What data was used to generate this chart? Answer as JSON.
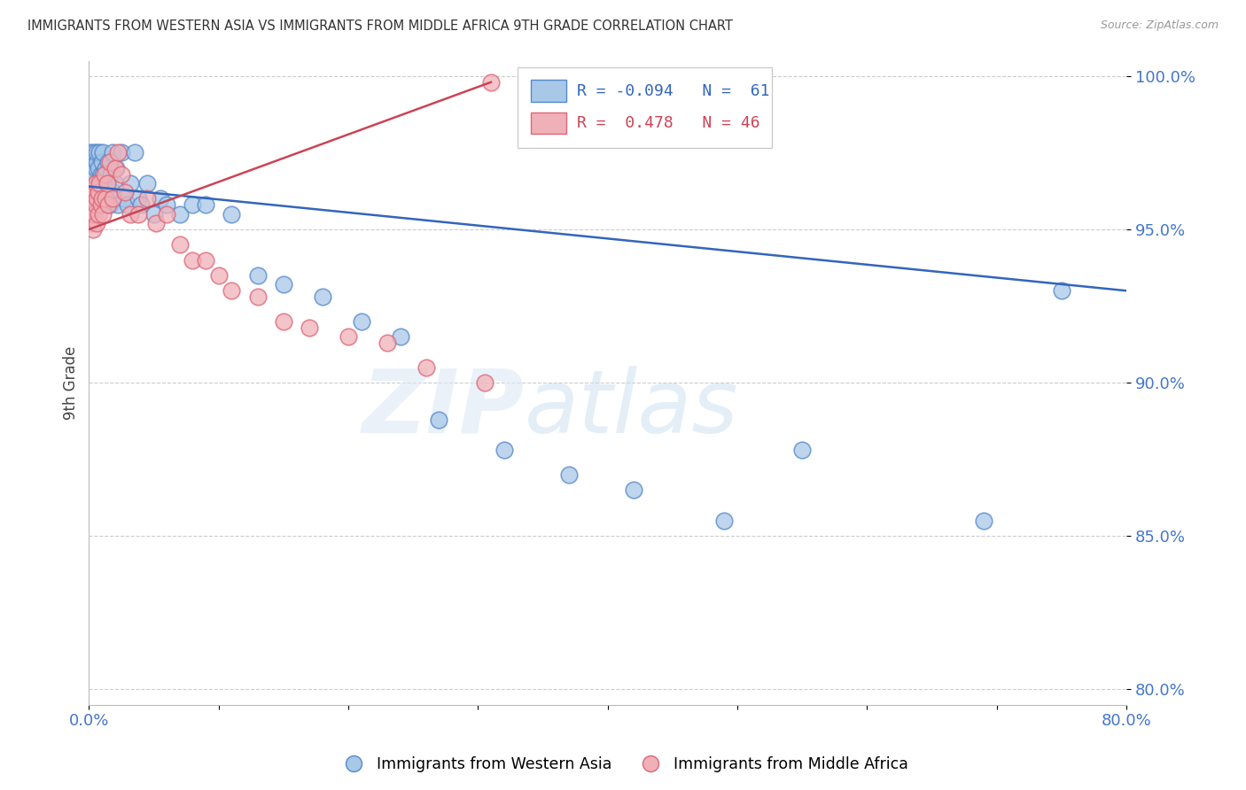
{
  "title": "IMMIGRANTS FROM WESTERN ASIA VS IMMIGRANTS FROM MIDDLE AFRICA 9TH GRADE CORRELATION CHART",
  "source": "Source: ZipAtlas.com",
  "ylabel": "9th Grade",
  "ytick_values": [
    80.0,
    85.0,
    90.0,
    95.0,
    100.0
  ],
  "xlim": [
    0.0,
    0.8
  ],
  "ylim": [
    0.795,
    1.005
  ],
  "legend_blue_R": "R = -0.094",
  "legend_blue_N": "N =  61",
  "legend_pink_R": "R =  0.478",
  "legend_pink_N": "N = 46",
  "legend_label_blue": "Immigrants from Western Asia",
  "legend_label_pink": "Immigrants from Middle Africa",
  "blue_fill": "#a8c8e8",
  "pink_fill": "#f0b0b8",
  "blue_edge": "#5588cc",
  "pink_edge": "#dd6677",
  "blue_line_color": "#3366bb",
  "pink_line_color": "#cc4455",
  "watermark_zip": "ZIP",
  "watermark_atlas": "atlas",
  "blue_scatter_x": [
    0.001,
    0.002,
    0.002,
    0.003,
    0.003,
    0.004,
    0.004,
    0.005,
    0.005,
    0.006,
    0.006,
    0.006,
    0.007,
    0.007,
    0.008,
    0.008,
    0.009,
    0.01,
    0.01,
    0.011,
    0.011,
    0.012,
    0.013,
    0.013,
    0.014,
    0.015,
    0.016,
    0.017,
    0.018,
    0.019,
    0.02,
    0.021,
    0.022,
    0.025,
    0.027,
    0.03,
    0.032,
    0.035,
    0.038,
    0.04,
    0.045,
    0.05,
    0.055,
    0.06,
    0.07,
    0.08,
    0.09,
    0.11,
    0.13,
    0.15,
    0.18,
    0.21,
    0.24,
    0.27,
    0.32,
    0.37,
    0.42,
    0.49,
    0.55,
    0.69,
    0.75
  ],
  "blue_scatter_y": [
    0.975,
    0.97,
    0.968,
    0.972,
    0.963,
    0.968,
    0.975,
    0.96,
    0.97,
    0.965,
    0.972,
    0.975,
    0.958,
    0.97,
    0.965,
    0.975,
    0.968,
    0.972,
    0.96,
    0.968,
    0.975,
    0.963,
    0.958,
    0.97,
    0.965,
    0.972,
    0.958,
    0.968,
    0.975,
    0.962,
    0.965,
    0.97,
    0.958,
    0.975,
    0.96,
    0.958,
    0.965,
    0.975,
    0.96,
    0.958,
    0.965,
    0.955,
    0.96,
    0.958,
    0.955,
    0.958,
    0.958,
    0.955,
    0.935,
    0.932,
    0.928,
    0.92,
    0.915,
    0.888,
    0.878,
    0.87,
    0.865,
    0.855,
    0.878,
    0.855,
    0.93
  ],
  "pink_scatter_x": [
    0.001,
    0.001,
    0.002,
    0.002,
    0.003,
    0.003,
    0.004,
    0.004,
    0.005,
    0.005,
    0.006,
    0.006,
    0.007,
    0.007,
    0.008,
    0.009,
    0.01,
    0.011,
    0.012,
    0.013,
    0.014,
    0.015,
    0.016,
    0.018,
    0.02,
    0.022,
    0.025,
    0.028,
    0.032,
    0.038,
    0.045,
    0.052,
    0.06,
    0.07,
    0.08,
    0.09,
    0.1,
    0.11,
    0.13,
    0.15,
    0.17,
    0.2,
    0.23,
    0.26,
    0.305,
    0.31
  ],
  "pink_scatter_y": [
    0.96,
    0.952,
    0.963,
    0.955,
    0.96,
    0.95,
    0.963,
    0.955,
    0.958,
    0.965,
    0.96,
    0.952,
    0.962,
    0.955,
    0.965,
    0.958,
    0.96,
    0.955,
    0.968,
    0.96,
    0.965,
    0.958,
    0.972,
    0.96,
    0.97,
    0.975,
    0.968,
    0.962,
    0.955,
    0.955,
    0.96,
    0.952,
    0.955,
    0.945,
    0.94,
    0.94,
    0.935,
    0.93,
    0.928,
    0.92,
    0.918,
    0.915,
    0.913,
    0.905,
    0.9,
    0.998
  ],
  "blue_line_x": [
    0.0,
    0.8
  ],
  "blue_line_y": [
    0.964,
    0.93
  ],
  "pink_line_x": [
    0.0,
    0.31
  ],
  "pink_line_y": [
    0.95,
    0.998
  ]
}
